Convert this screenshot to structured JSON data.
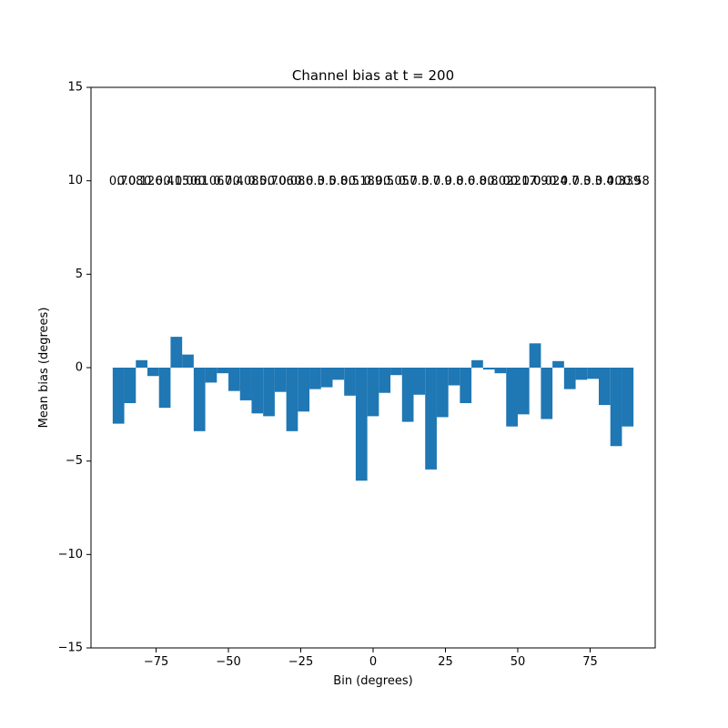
{
  "chart_data": {
    "type": "bar",
    "title": "Channel bias at t = 200",
    "xlabel": "Bin (degrees)",
    "ylabel": "Mean bias (degrees)",
    "xlim": [
      -97.5,
      97.5
    ],
    "ylim": [
      -15,
      15
    ],
    "x_ticks": [
      -75,
      -50,
      -25,
      0,
      25,
      50,
      75
    ],
    "x_tick_labels": [
      "−75",
      "−50",
      "−25",
      "0",
      "25",
      "50",
      "75"
    ],
    "y_ticks": [
      -15,
      -10,
      -5,
      0,
      5,
      10,
      15
    ],
    "y_tick_labels": [
      "−15",
      "−10",
      "−5",
      "0",
      "5",
      "10",
      "15"
    ],
    "grid": false,
    "bar_color": "#1f77b4",
    "bar_width": 4,
    "label_y": 10,
    "x": [
      -88,
      -84,
      -80,
      -76,
      -72,
      -68,
      -64,
      -60,
      -56,
      -52,
      -48,
      -44,
      -40,
      -36,
      -32,
      -28,
      -24,
      -20,
      -16,
      -12,
      -8,
      -4,
      0,
      4,
      8,
      12,
      16,
      20,
      24,
      28,
      32,
      36,
      40,
      44,
      48,
      52,
      56,
      60,
      64,
      68,
      72,
      76,
      80,
      84,
      88
    ],
    "values": [
      -3.0,
      -1.9,
      0.4,
      -0.45,
      -2.15,
      1.65,
      0.7,
      -3.4,
      -0.8,
      -0.3,
      -1.25,
      -1.75,
      -2.45,
      -2.6,
      -1.3,
      -3.4,
      -2.35,
      -1.15,
      -1.05,
      -0.65,
      -1.5,
      -6.05,
      -2.6,
      -1.35,
      -0.4,
      -2.9,
      -1.45,
      -5.45,
      -2.65,
      -0.95,
      -1.9,
      0.4,
      -0.1,
      -0.3,
      -3.15,
      -2.5,
      1.3,
      -2.75,
      0.35,
      -1.15,
      -0.65,
      -0.6,
      -2.0,
      -4.2,
      -3.15
    ],
    "labels": [
      "0.7",
      "0.08",
      "0.12",
      "0.6",
      "0.4",
      "0.15",
      "0.06",
      "0.1",
      "0.06",
      "0.7",
      "0.4",
      "0.08",
      "0.5",
      "0.7",
      "0.06",
      "0.08",
      "0.6",
      "0.3",
      "0.5",
      "0.8",
      "0.5",
      "0.18",
      "0.9",
      "0.5",
      "0.05",
      "0.7",
      "0.3",
      "0.7",
      "0.9",
      "0.8",
      "0.6",
      "0.8",
      "0.8",
      "0.02",
      "0.2",
      "0.17",
      "0.09",
      "0.02",
      "0.4",
      "0.7",
      "0.3",
      "0.3",
      "0.4",
      "0.3",
      "0.39"
    ],
    "last_label": "0.58"
  }
}
